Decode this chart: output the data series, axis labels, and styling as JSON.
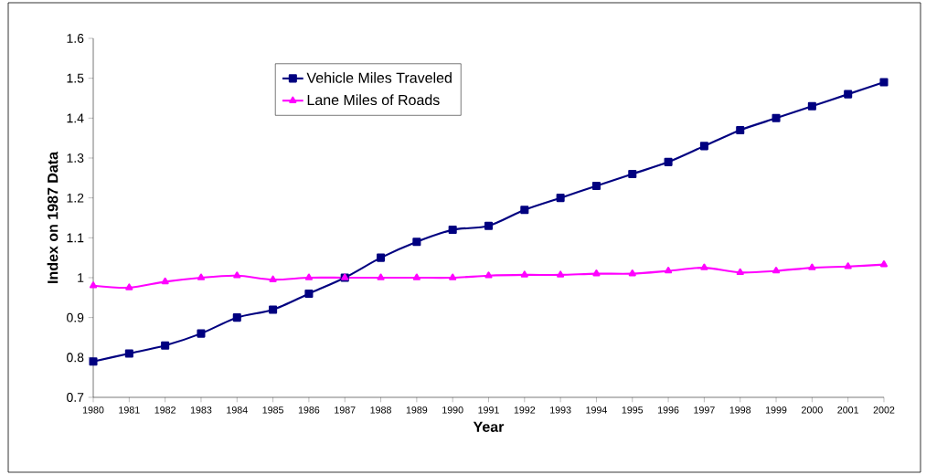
{
  "chart_data": {
    "type": "line",
    "xlabel": "Year",
    "ylabel": "Index on 1987 Data",
    "x": [
      1980,
      1981,
      1982,
      1983,
      1984,
      1985,
      1986,
      1987,
      1988,
      1989,
      1990,
      1991,
      1992,
      1993,
      1994,
      1995,
      1996,
      1997,
      1998,
      1999,
      2000,
      2001,
      2002
    ],
    "series": [
      {
        "name": "Vehicle Miles Traveled",
        "color": "#000080",
        "marker": "square",
        "values": [
          0.79,
          0.81,
          0.83,
          0.86,
          0.9,
          0.92,
          0.96,
          1.0,
          1.05,
          1.09,
          1.12,
          1.13,
          1.17,
          1.2,
          1.23,
          1.26,
          1.29,
          1.33,
          1.37,
          1.4,
          1.43,
          1.46,
          1.49
        ]
      },
      {
        "name": "Lane Miles of Roads",
        "color": "#ff00ff",
        "marker": "triangle",
        "values": [
          0.98,
          0.975,
          0.99,
          1.0,
          1.005,
          0.995,
          1.0,
          1.0,
          1.0,
          1.0,
          1.0,
          1.005,
          1.007,
          1.007,
          1.01,
          1.01,
          1.017,
          1.025,
          1.013,
          1.017,
          1.025,
          1.028,
          1.033
        ]
      }
    ],
    "xlim": [
      1980,
      2002
    ],
    "ylim": [
      0.7,
      1.6
    ],
    "xticks": [
      1980,
      1981,
      1982,
      1983,
      1984,
      1985,
      1986,
      1987,
      1988,
      1989,
      1990,
      1991,
      1992,
      1993,
      1994,
      1995,
      1996,
      1997,
      1998,
      1999,
      2000,
      2001,
      2002
    ],
    "yticks": [
      0.7,
      0.8,
      0.9,
      1,
      1.1,
      1.2,
      1.3,
      1.4,
      1.5,
      1.6
    ],
    "grid": false,
    "legend": "top left",
    "line_style": "solid"
  }
}
